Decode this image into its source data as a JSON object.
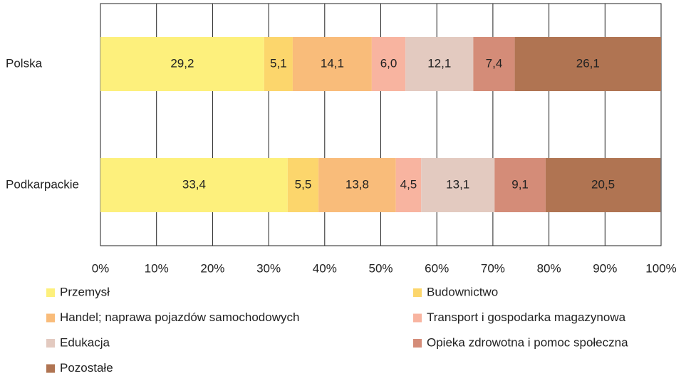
{
  "chart_data": {
    "type": "stacked-bar-horizontal",
    "categories": [
      "Polska",
      "Podkarpackie"
    ],
    "series": [
      {
        "name": "Przemysł",
        "color": "#fdf07c",
        "values": [
          29.2,
          33.4
        ],
        "value_labels": [
          "29,2",
          "33,4"
        ]
      },
      {
        "name": "Budownictwo",
        "color": "#fcd66c",
        "values": [
          5.1,
          5.5
        ],
        "value_labels": [
          "5,1",
          "5,5"
        ]
      },
      {
        "name": "Handel; naprawa pojazdów samochodowych",
        "color": "#f9bc7a",
        "values": [
          14.1,
          13.8
        ],
        "value_labels": [
          "14,1",
          "13,8"
        ]
      },
      {
        "name": "Transport i gospodarka magazynowa",
        "color": "#f8b4a0",
        "values": [
          6.0,
          4.5
        ],
        "value_labels": [
          "6,0",
          "4,5"
        ]
      },
      {
        "name": "Edukacja",
        "color": "#e3cac0",
        "values": [
          12.1,
          13.1
        ],
        "value_labels": [
          "12,1",
          "13,1"
        ]
      },
      {
        "name": "Opieka zdrowotna i pomoc społeczna",
        "color": "#d48c78",
        "values": [
          7.4,
          9.1
        ],
        "value_labels": [
          "7,4",
          "9,1"
        ]
      },
      {
        "name": "Pozostałe",
        "color": "#b07452",
        "values": [
          26.1,
          20.5
        ],
        "value_labels": [
          "26,1",
          "20,5"
        ]
      }
    ],
    "xlim": [
      0,
      100
    ],
    "xticks": [
      {
        "value": 0,
        "label": "0%"
      },
      {
        "value": 10,
        "label": "10%"
      },
      {
        "value": 20,
        "label": "20%"
      },
      {
        "value": 30,
        "label": "30%"
      },
      {
        "value": 40,
        "label": "40%"
      },
      {
        "value": 50,
        "label": "50%"
      },
      {
        "value": 60,
        "label": "60%"
      },
      {
        "value": 70,
        "label": "70%"
      },
      {
        "value": 80,
        "label": "80%"
      },
      {
        "value": 90,
        "label": "90%"
      },
      {
        "value": 100,
        "label": "100%"
      }
    ],
    "grid": true
  }
}
